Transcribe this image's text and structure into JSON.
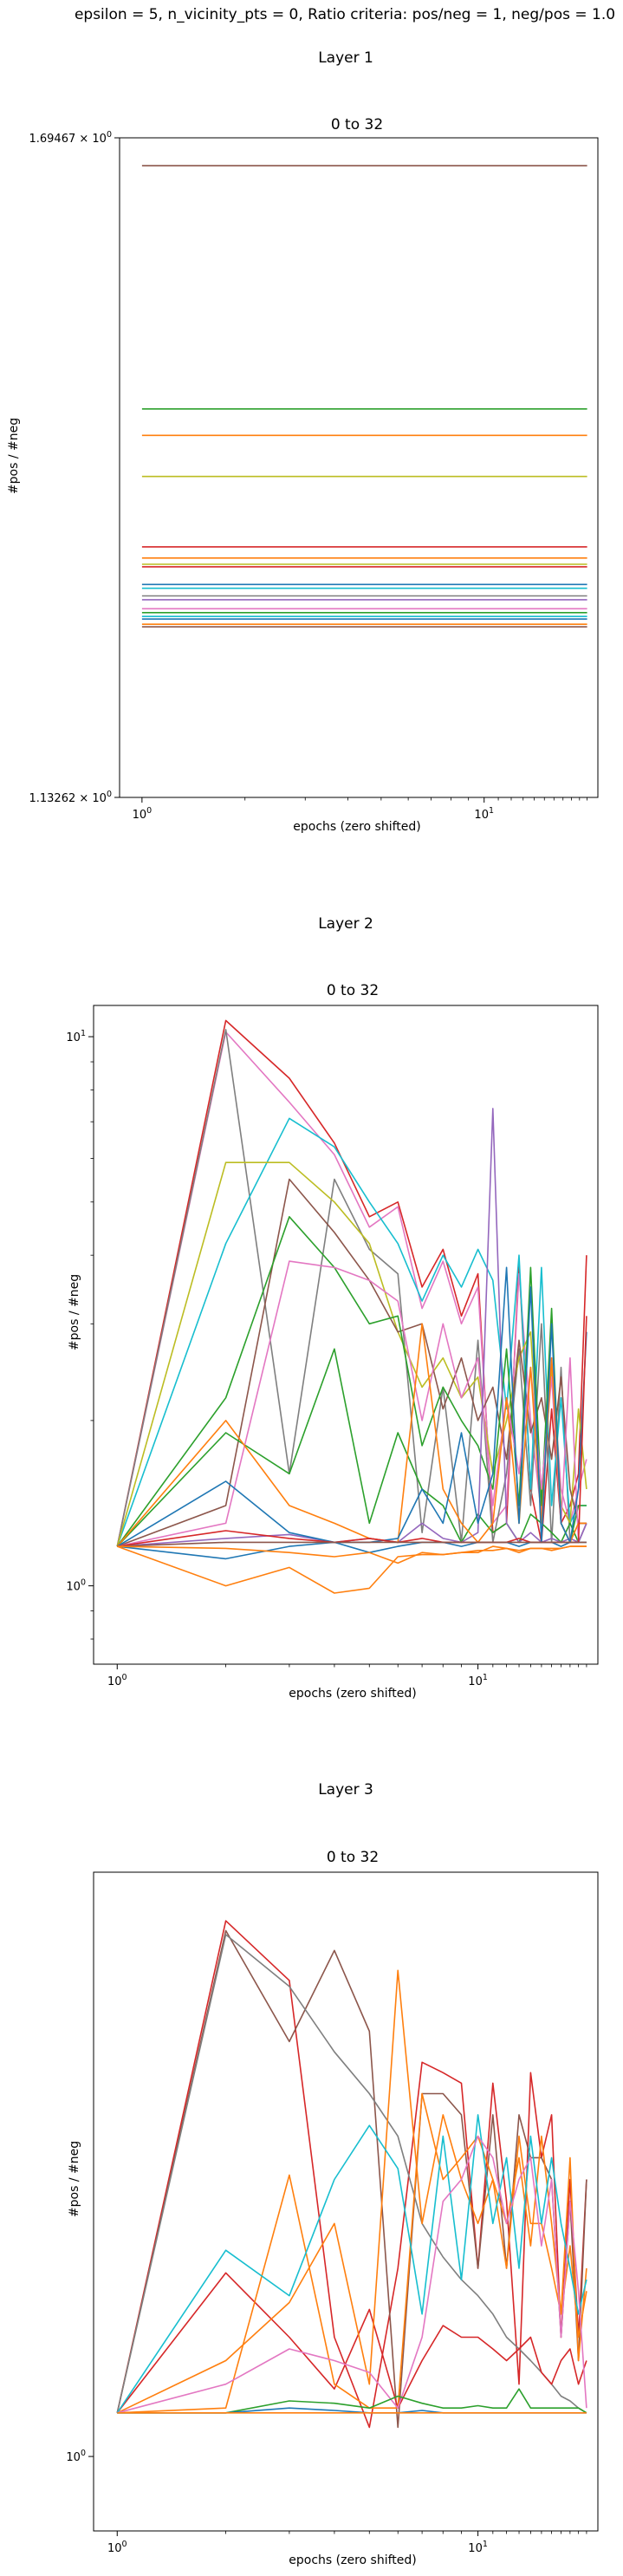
{
  "suptitle": "epsilon = 5, n_vicinity_pts = 0, Ratio criteria: pos/neg = 1, neg/pos = 1.0",
  "palette": [
    "#1f77b4",
    "#ff7f0e",
    "#2ca02c",
    "#d62728",
    "#9467bd",
    "#8c564b",
    "#e377c2",
    "#7f7f7f",
    "#bcbd22",
    "#17becf"
  ],
  "chart_data": [
    {
      "type": "line",
      "layer_title": "Layer 1",
      "title": "0 to 32",
      "xlabel": "epochs (zero shifted)",
      "ylabel": "#pos / #neg",
      "xscale": "log",
      "yscale": "log",
      "xlim": [
        0.86,
        21.5
      ],
      "ylim": [
        1.13262,
        1.69467
      ],
      "xticks": [
        {
          "value": 1,
          "label": "10^0"
        },
        {
          "value": 10,
          "label": "10^1"
        }
      ],
      "yticks": [
        {
          "value": 1.13262,
          "label": "1.13262 × 10^0"
        },
        {
          "value": 1.69467,
          "label": "1.69467 × 10^0"
        }
      ],
      "grid": false,
      "series": [
        {
          "color": "#8c564b",
          "values": [
            1.666
          ]
        },
        {
          "color": "#2ca02c",
          "values": [
            1.436
          ]
        },
        {
          "color": "#ff7f0e",
          "values": [
            1.413
          ]
        },
        {
          "color": "#bcbd22",
          "values": [
            1.378
          ]
        },
        {
          "color": "#d62728",
          "values": [
            1.32
          ]
        },
        {
          "color": "#ff7f0e",
          "values": [
            1.311
          ]
        },
        {
          "color": "#bcbd22",
          "values": [
            1.306
          ]
        },
        {
          "color": "#d62728",
          "values": [
            1.304
          ]
        },
        {
          "color": "#1f77b4",
          "values": [
            1.29
          ]
        },
        {
          "color": "#17becf",
          "values": [
            1.287
          ]
        },
        {
          "color": "#7f7f7f",
          "values": [
            1.281
          ]
        },
        {
          "color": "#9467bd",
          "values": [
            1.278
          ]
        },
        {
          "color": "#e377c2",
          "values": [
            1.271
          ]
        },
        {
          "color": "#2ca02c",
          "values": [
            1.268
          ]
        },
        {
          "color": "#17becf",
          "values": [
            1.265
          ]
        },
        {
          "color": "#1f77b4",
          "values": [
            1.263
          ]
        },
        {
          "color": "#ff7f0e",
          "values": [
            1.259
          ]
        },
        {
          "color": "#8c564b",
          "values": [
            1.257
          ]
        }
      ]
    },
    {
      "type": "line",
      "layer_title": "Layer 2",
      "title": "0 to 32",
      "xlabel": "epochs (zero shifted)",
      "ylabel": "#pos / #neg",
      "xscale": "log",
      "yscale": "log",
      "xlim": [
        0.86,
        21.5
      ],
      "ylim": [
        0.72,
        11.4
      ],
      "xticks": [
        {
          "value": 1,
          "label": "10^0"
        },
        {
          "value": 10,
          "label": "10^1"
        }
      ],
      "yticks": [
        {
          "value": 1,
          "label": "10^0"
        },
        {
          "value": 10,
          "label": "10^1"
        }
      ],
      "grid": false,
      "series": [
        {
          "color": "#d62728",
          "values": [
            1.18,
            10.7,
            8.4,
            6.4,
            4.7,
            5.0,
            3.5,
            4.1,
            3.1,
            3.7,
            1.25,
            1.3,
            3.9,
            1.5,
            1.2,
            2.1,
            1.3,
            1.4,
            1.6,
            4.0
          ]
        },
        {
          "color": "#e377c2",
          "values": [
            1.18,
            10.2,
            7.6,
            6.1,
            4.5,
            4.9,
            3.2,
            3.9,
            3.0,
            3.5,
            1.3,
            1.4,
            3.7,
            2.0,
            1.35,
            2.6,
            1.5,
            1.3,
            1.5,
            1.7
          ]
        },
        {
          "color": "#7f7f7f",
          "values": [
            1.18,
            10.3,
            1.6,
            5.5,
            4.1,
            3.7,
            1.25,
            2.3,
            1.2,
            2.8,
            1.2,
            1.6,
            2.7,
            1.4,
            3.0,
            1.2,
            2.5,
            1.2,
            1.3,
            1.3
          ]
        },
        {
          "color": "#17becf",
          "values": [
            1.18,
            4.2,
            7.1,
            6.3,
            5.0,
            4.2,
            3.3,
            4.0,
            3.5,
            4.1,
            3.6,
            2.1,
            4.0,
            1.5,
            3.8,
            1.4,
            2.2,
            1.3,
            1.4,
            1.4
          ]
        },
        {
          "color": "#bcbd22",
          "values": [
            1.18,
            5.9,
            5.9,
            5.0,
            4.2,
            2.9,
            2.3,
            2.6,
            2.2,
            2.4,
            1.6,
            2.0,
            2.6,
            2.9,
            1.4,
            2.5,
            1.4,
            1.3,
            2.1,
            1.5
          ]
        },
        {
          "color": "#8c564b",
          "values": [
            1.18,
            1.4,
            5.5,
            4.4,
            3.6,
            2.9,
            3.0,
            2.1,
            2.6,
            2.0,
            2.3,
            1.7,
            2.8,
            1.9,
            2.2,
            1.7,
            2.4,
            1.5,
            1.3,
            1.3
          ]
        },
        {
          "color": "#2ca02c",
          "values": [
            1.18,
            2.2,
            4.7,
            3.8,
            3.0,
            3.1,
            1.8,
            2.3,
            2.0,
            1.8,
            1.5,
            2.7,
            1.4,
            3.8,
            1.4,
            3.2,
            1.3,
            1.2,
            1.4,
            1.4
          ]
        },
        {
          "color": "#2ca02c",
          "values": [
            1.18,
            1.9,
            1.6,
            2.7,
            1.3,
            1.9,
            1.5,
            1.4,
            1.2,
            1.35,
            1.25,
            1.3,
            1.2,
            1.35,
            1.3,
            1.25,
            1.2,
            1.3,
            1.2,
            1.3
          ]
        },
        {
          "color": "#e377c2",
          "values": [
            1.18,
            1.3,
            3.9,
            3.8,
            3.6,
            3.3,
            2.0,
            3.0,
            2.2,
            2.6,
            1.4,
            2.2,
            1.6,
            2.5,
            1.5,
            2.4,
            1.3,
            2.6,
            1.2,
            1.3
          ]
        },
        {
          "color": "#9467bd",
          "values": [
            1.18,
            1.22,
            1.24,
            1.2,
            1.22,
            1.2,
            1.3,
            1.22,
            1.2,
            1.25,
            7.4,
            1.3,
            1.2,
            1.25,
            1.2,
            1.22,
            1.2,
            1.22,
            1.2,
            1.3
          ]
        },
        {
          "color": "#ff7f0e",
          "values": [
            1.18,
            2.0,
            1.4,
            1.3,
            1.22,
            1.2,
            3.0,
            1.5,
            1.3,
            1.2,
            1.3,
            2.2,
            1.3,
            2.5,
            1.3,
            2.6,
            1.3,
            1.2,
            1.3,
            1.3
          ]
        },
        {
          "color": "#1f77b4",
          "values": [
            1.18,
            1.55,
            1.25,
            1.2,
            1.2,
            1.22,
            1.5,
            1.3,
            1.9,
            1.3,
            1.6,
            3.8,
            1.3,
            3.5,
            1.2,
            3.0,
            1.3,
            1.2,
            1.5,
            2.9
          ]
        },
        {
          "color": "#1f77b4",
          "values": [
            1.18,
            1.12,
            1.18,
            1.2,
            1.15,
            1.18,
            1.2,
            1.2,
            1.18,
            1.2,
            1.2,
            1.2,
            1.18,
            1.2,
            1.2,
            1.2,
            1.18,
            1.2,
            1.2,
            1.2
          ]
        },
        {
          "color": "#d62728",
          "values": [
            1.18,
            1.26,
            1.22,
            1.2,
            1.22,
            1.2,
            1.22,
            1.2,
            1.2,
            1.2,
            1.2,
            1.2,
            1.22,
            1.2,
            1.2,
            1.2,
            1.2,
            1.2,
            1.2,
            3.1
          ]
        },
        {
          "color": "#8c564b",
          "values": [
            1.18,
            1.2,
            1.2,
            1.2,
            1.2,
            1.2,
            1.2,
            1.2,
            1.2,
            1.2,
            1.2,
            1.2,
            1.2,
            1.2,
            1.2,
            1.2,
            1.2,
            1.2,
            1.2,
            1.2
          ]
        },
        {
          "color": "#ff7f0e",
          "values": [
            1.18,
            1.17,
            1.15,
            1.13,
            1.15,
            1.1,
            1.15,
            1.14,
            1.15,
            1.15,
            1.18,
            1.17,
            1.15,
            1.17,
            1.17,
            1.16,
            1.17,
            1.18,
            1.18,
            1.18
          ]
        },
        {
          "color": "#ff7f0e",
          "values": [
            1.18,
            1.0,
            1.08,
            0.97,
            0.99,
            1.13,
            1.14,
            1.14,
            1.15,
            1.16,
            1.16,
            1.17,
            1.16,
            1.17,
            1.17,
            1.17,
            1.17,
            1.18,
            1.18,
            1.18
          ]
        }
      ]
    },
    {
      "type": "line",
      "layer_title": "Layer 3",
      "title": "0 to 32",
      "xlabel": "epochs (zero shifted)",
      "ylabel": "#pos / #neg",
      "xscale": "log",
      "yscale": "log",
      "xlim": [
        0.86,
        21.5
      ],
      "ylim": [
        0.97,
        1.27
      ],
      "xticks": [
        {
          "value": 1,
          "label": "10^0"
        },
        {
          "value": 10,
          "label": "10^1"
        }
      ],
      "yticks": [
        {
          "value": 1,
          "label": "10^0"
        }
      ],
      "grid": false,
      "series": [
        {
          "color": "#d62728",
          "values": [
            1.018,
            1.245,
            1.215,
            1.05,
            1.012,
            1.08,
            1.175,
            1.17,
            1.165,
            1.08,
            1.165,
            1.11,
            1.03,
            1.17,
            1.13,
            1.15,
            1.05,
            1.12,
            1.05,
            1.12
          ]
        },
        {
          "color": "#8c564b",
          "values": [
            1.018,
            1.24,
            1.185,
            1.23,
            1.19,
            1.012,
            1.16,
            1.16,
            1.15,
            1.08,
            1.15,
            1.08,
            1.15,
            1.13,
            1.13,
            1.12,
            1.05,
            1.11,
            1.04,
            1.12
          ]
        },
        {
          "color": "#7f7f7f",
          "values": [
            1.018,
            1.238,
            1.212,
            1.18,
            1.16,
            1.14,
            1.1,
            1.085,
            1.075,
            1.068,
            1.06,
            1.05,
            1.045,
            1.04,
            1.035,
            1.03,
            1.025,
            1.023,
            1.02,
            1.018
          ]
        },
        {
          "color": "#d62728",
          "values": [
            1.018,
            1.078,
            1.05,
            1.028,
            1.062,
            1.02,
            1.04,
            1.055,
            1.05,
            1.05,
            1.045,
            1.04,
            1.045,
            1.05,
            1.035,
            1.03,
            1.04,
            1.045,
            1.03,
            1.04
          ]
        },
        {
          "color": "#ff7f0e",
          "values": [
            1.018,
            1.04,
            1.065,
            1.1,
            1.03,
            1.22,
            1.1,
            1.15,
            1.12,
            1.1,
            1.12,
            1.08,
            1.14,
            1.1,
            1.1,
            1.08,
            1.06,
            1.09,
            1.05,
            1.07
          ]
        },
        {
          "color": "#ff7f0e",
          "values": [
            1.018,
            1.02,
            1.122,
            1.03,
            1.02,
            1.02,
            1.16,
            1.12,
            1.13,
            1.14,
            1.12,
            1.1,
            1.13,
            1.09,
            1.14,
            1.1,
            1.06,
            1.13,
            1.04,
            1.08
          ]
        },
        {
          "color": "#17becf",
          "values": [
            1.018,
            1.088,
            1.068,
            1.12,
            1.145,
            1.125,
            1.06,
            1.14,
            1.075,
            1.15,
            1.1,
            1.13,
            1.08,
            1.14,
            1.1,
            1.13,
            1.1,
            1.08,
            1.06,
            1.075
          ]
        },
        {
          "color": "#e377c2",
          "values": [
            1.018,
            1.03,
            1.045,
            1.04,
            1.035,
            1.02,
            1.05,
            1.11,
            1.12,
            1.14,
            1.13,
            1.1,
            1.12,
            1.13,
            1.09,
            1.12,
            1.05,
            1.11,
            1.07,
            1.02
          ]
        },
        {
          "color": "#2ca02c",
          "values": [
            1.018,
            1.018,
            1.023,
            1.022,
            1.02,
            1.025,
            1.022,
            1.02,
            1.02,
            1.021,
            1.02,
            1.02,
            1.028,
            1.02,
            1.02,
            1.02,
            1.02,
            1.02,
            1.02,
            1.018
          ]
        },
        {
          "color": "#1f77b4",
          "values": [
            1.018,
            1.018,
            1.02,
            1.019,
            1.018,
            1.018,
            1.019,
            1.018,
            1.018,
            1.018,
            1.018,
            1.018,
            1.018,
            1.018,
            1.018,
            1.018,
            1.018,
            1.018,
            1.018,
            1.018
          ]
        },
        {
          "color": "#ff7f0e",
          "values": [
            1.018,
            1.018,
            1.018,
            1.018,
            1.018,
            1.018,
            1.018,
            1.018,
            1.018,
            1.018,
            1.018,
            1.018,
            1.018,
            1.018,
            1.018,
            1.018,
            1.018,
            1.018,
            1.018,
            1.018
          ]
        }
      ]
    }
  ]
}
